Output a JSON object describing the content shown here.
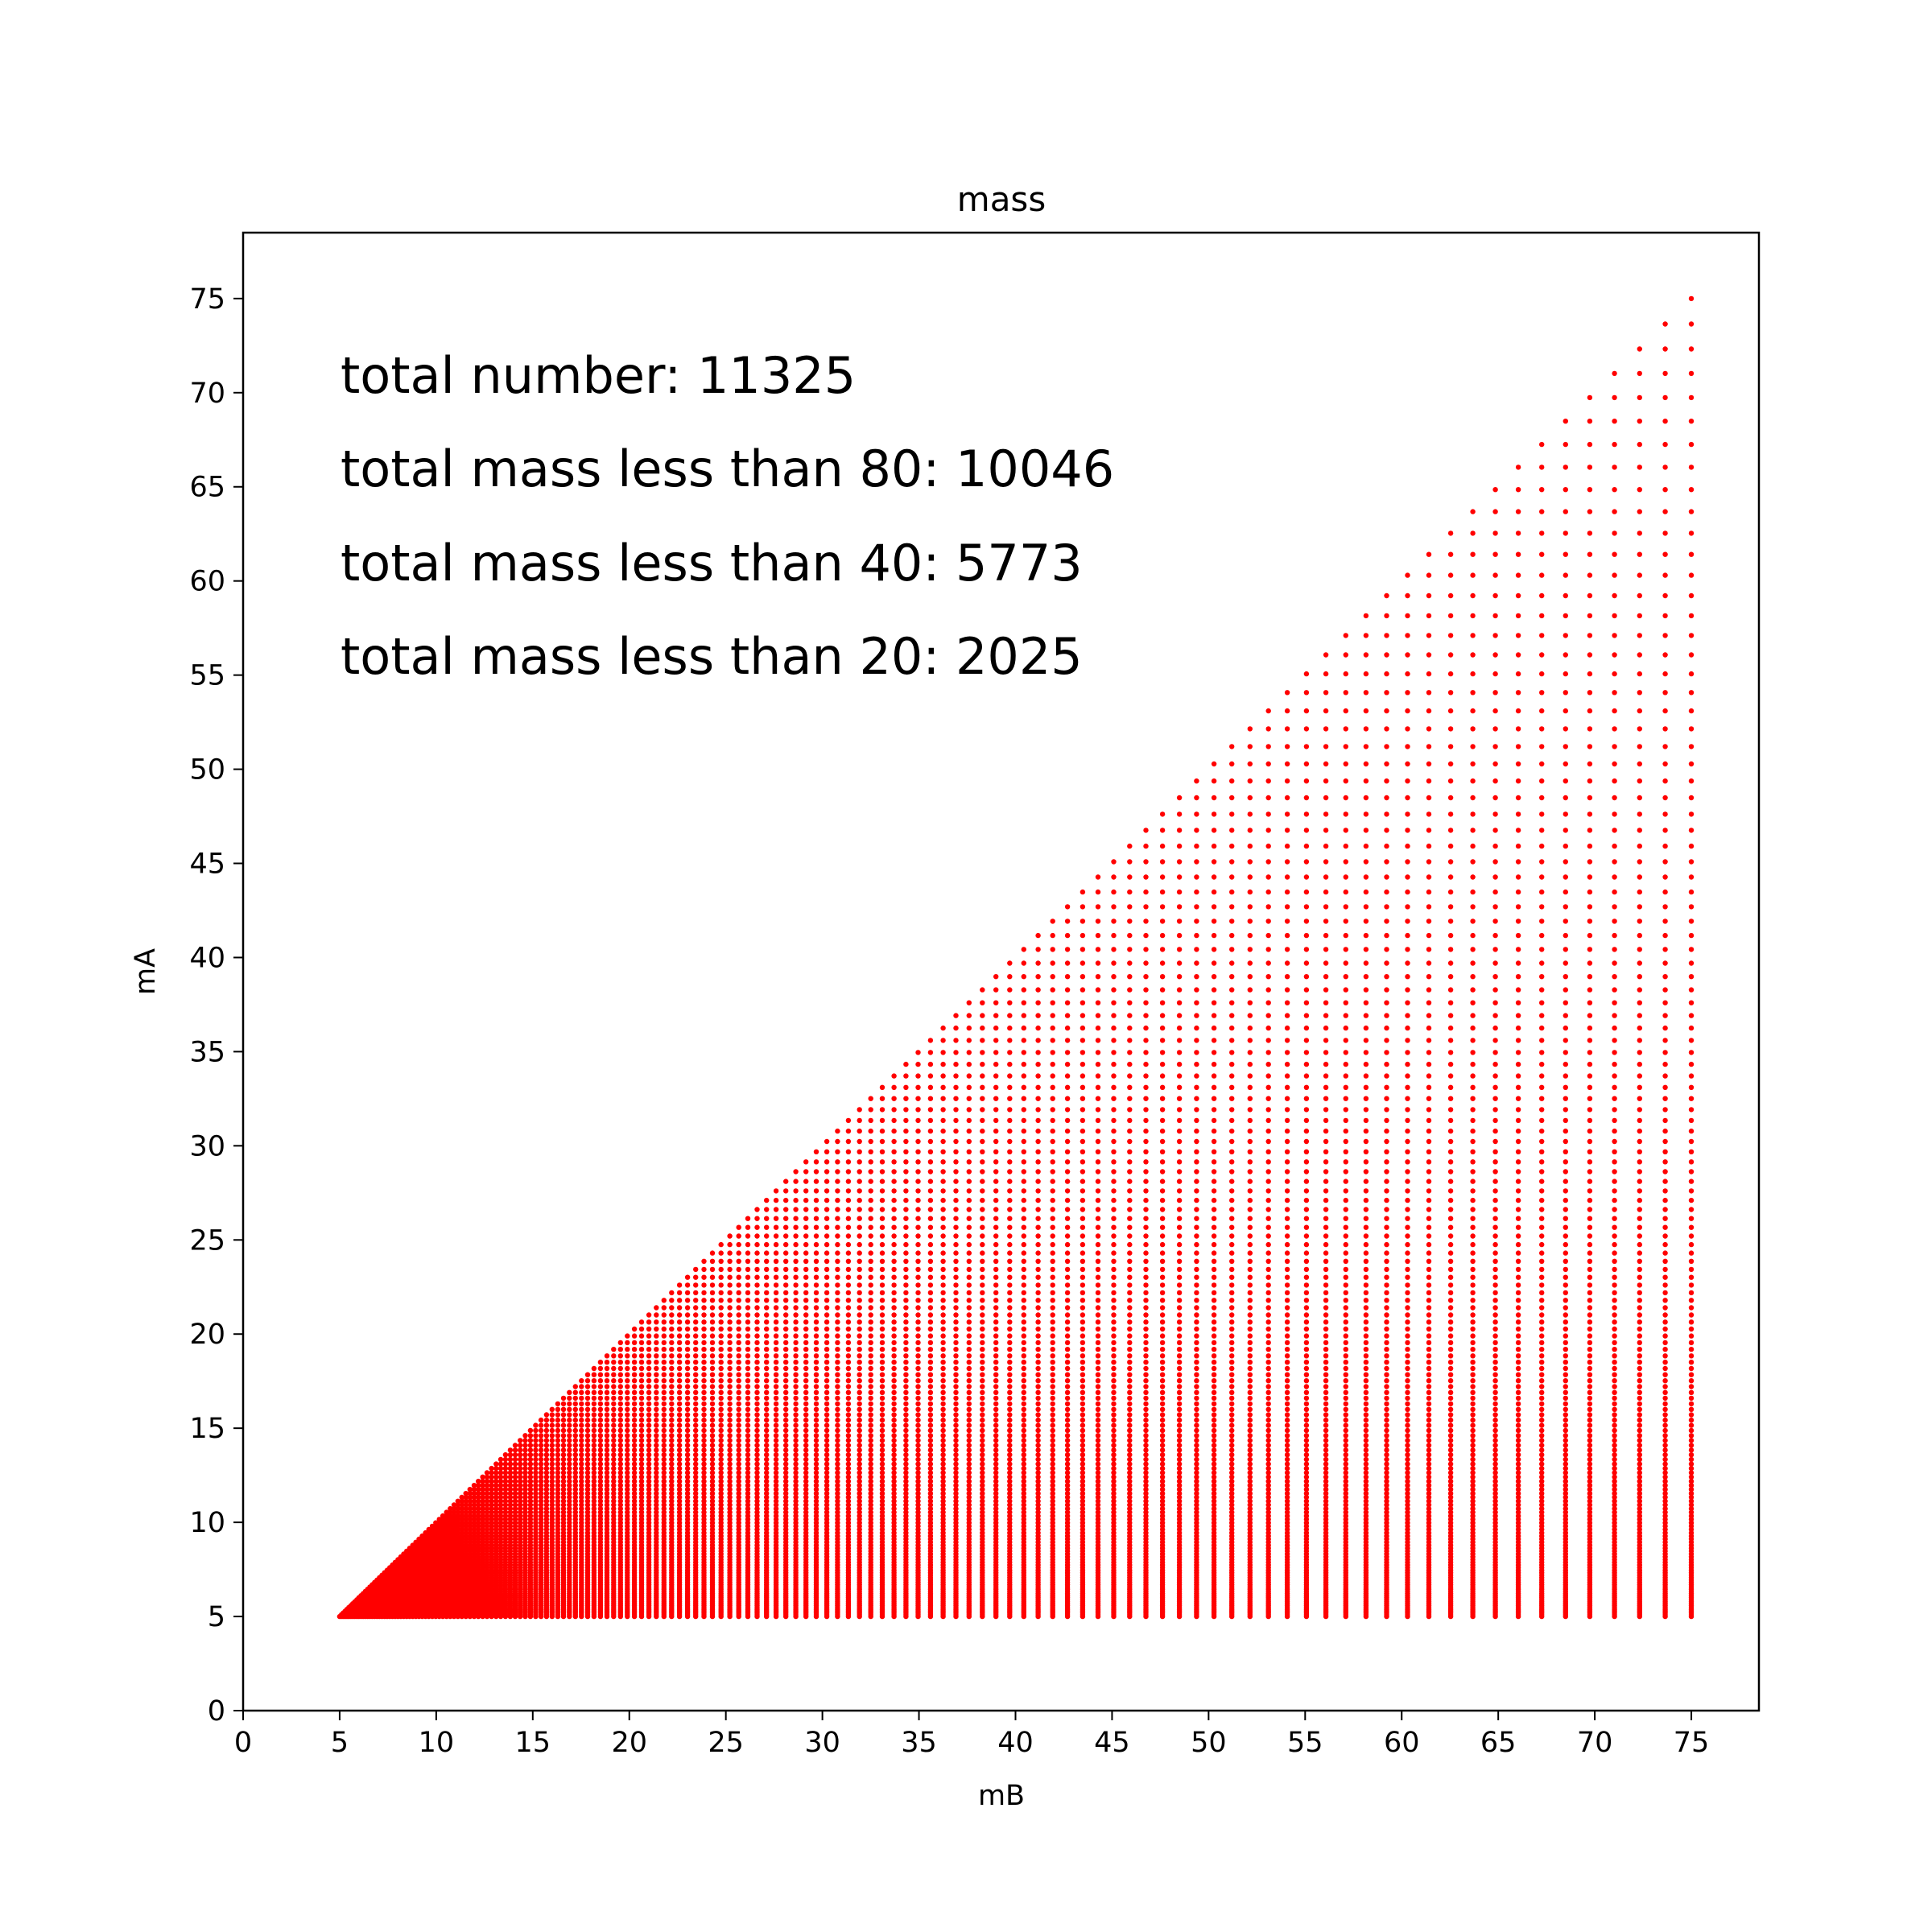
{
  "chart_data": {
    "type": "scatter",
    "title": "mass",
    "xlabel": "mB",
    "ylabel": "mA",
    "xlim": [
      0,
      78.5
    ],
    "ylim": [
      0,
      78.5
    ],
    "xticks": [
      0,
      5,
      10,
      15,
      20,
      25,
      30,
      35,
      40,
      45,
      50,
      55,
      60,
      65,
      70,
      75
    ],
    "yticks": [
      0,
      5,
      10,
      15,
      20,
      25,
      30,
      35,
      40,
      45,
      50,
      55,
      60,
      65,
      70,
      75
    ],
    "grid": false,
    "series_color": "#ff0000",
    "point_rule": "log-spaced grid of 150 mass values from 5 to 75; one point for each pair with mA <= mB",
    "mass_min": 5,
    "mass_max": 75,
    "steps": 150,
    "annotations": [
      "total number: 11325",
      "total mass less than 80: 10046",
      "total mass less than 40: 5773",
      "total mass less than 20: 2025"
    ]
  }
}
